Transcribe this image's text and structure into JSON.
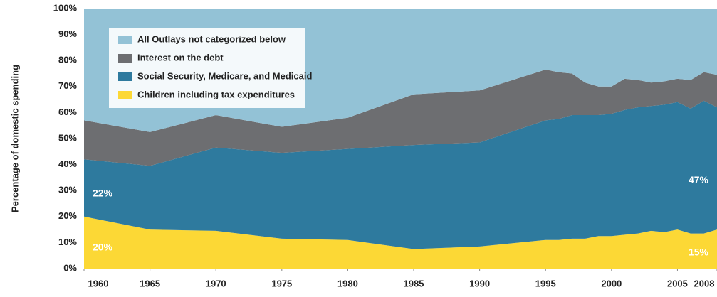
{
  "chart_data": {
    "type": "stacked_area",
    "y_axis_label": "Percentage of domestic spending",
    "x": [
      1960,
      1965,
      1970,
      1975,
      1980,
      1985,
      1990,
      1995,
      1996,
      1997,
      1998,
      1999,
      2000,
      2001,
      2002,
      2003,
      2004,
      2005,
      2006,
      2007,
      2008
    ],
    "xlim": [
      1960,
      2008
    ],
    "xticks": [
      1960,
      1965,
      1970,
      1975,
      1980,
      1985,
      1990,
      1995,
      2000,
      2005,
      2008
    ],
    "ylim": [
      0,
      100
    ],
    "yticks": [
      {
        "value": 0,
        "label": "0%"
      },
      {
        "value": 10,
        "label": "10%"
      },
      {
        "value": 20,
        "label": "20%"
      },
      {
        "value": 30,
        "label": "30%"
      },
      {
        "value": 40,
        "label": "40%"
      },
      {
        "value": 50,
        "label": "50%"
      },
      {
        "value": 60,
        "label": "60%"
      },
      {
        "value": 70,
        "label": "70%"
      },
      {
        "value": 80,
        "label": "80%"
      },
      {
        "value": 90,
        "label": "90%"
      },
      {
        "value": 100,
        "label": "100%"
      }
    ],
    "grid": false,
    "legend_position": "upper left",
    "series": [
      {
        "name": "Children including tax expenditures",
        "color": "#fcd835",
        "values": [
          20,
          15,
          14.5,
          11.5,
          11,
          7.5,
          8.5,
          11,
          11,
          11.5,
          11.5,
          12.5,
          12.5,
          13,
          13.5,
          14.5,
          14,
          15,
          13.5,
          13.5,
          15
        ],
        "value_labels": [
          "20%",
          null,
          null,
          null,
          null,
          null,
          null,
          null,
          null,
          null,
          null,
          null,
          null,
          null,
          null,
          null,
          null,
          null,
          null,
          null,
          "15%"
        ]
      },
      {
        "name": "Social Security, Medicare, and Medicaid",
        "color": "#2e7a9e",
        "values": [
          22,
          24.5,
          32,
          33,
          35,
          40,
          40,
          46,
          46.5,
          47.5,
          47.5,
          46.5,
          47,
          48,
          48.5,
          48,
          49,
          49,
          48,
          51,
          47
        ],
        "value_labels": [
          "22%",
          null,
          null,
          null,
          null,
          null,
          null,
          null,
          null,
          null,
          null,
          null,
          null,
          null,
          null,
          null,
          null,
          null,
          null,
          null,
          "47%"
        ]
      },
      {
        "name": "Interest on the debt",
        "color": "#6d6e71",
        "values": [
          15,
          13,
          12.5,
          10,
          12,
          19.5,
          20,
          19.5,
          18,
          16,
          12.5,
          11,
          10.5,
          12,
          10.5,
          9,
          9,
          9,
          11,
          11,
          12.5
        ]
      },
      {
        "name": "All Outlays not categorized below",
        "color": "#93c2d6",
        "values": [
          43,
          47.5,
          41,
          45.5,
          42,
          33,
          31.5,
          23.5,
          24.5,
          25,
          28.5,
          30,
          30,
          27,
          27.5,
          28.5,
          28,
          27,
          27.5,
          24.5,
          25.5
        ]
      }
    ]
  }
}
